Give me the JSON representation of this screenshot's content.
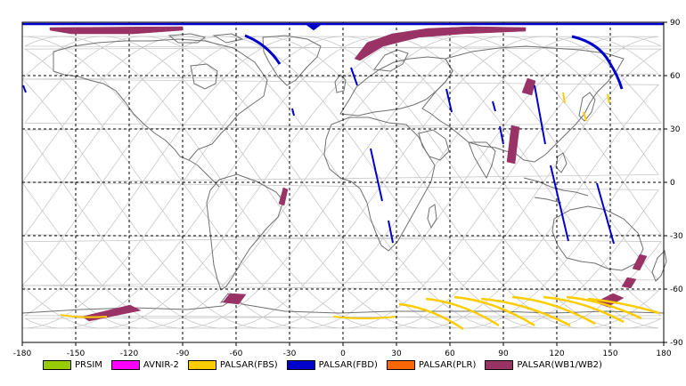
{
  "map": {
    "lon_ticks": [
      "-180",
      "-150",
      "-120",
      "-90",
      "-60",
      "-30",
      "0",
      "30",
      "60",
      "90",
      "120",
      "150",
      "180"
    ],
    "lat_ticks": [
      "90",
      "60",
      "30",
      "0",
      "-30",
      "-60",
      "-90"
    ],
    "colors": {
      "grid": "#000000",
      "orbit": "#c8c8c8",
      "coast": "#707070",
      "frame": "#000000"
    }
  },
  "legend": [
    {
      "label": "PRSIM",
      "color": "#99cc00"
    },
    {
      "label": "AVNIR-2",
      "color": "#ff00ff"
    },
    {
      "label": "PALSAR(FBS)",
      "color": "#ffcc00"
    },
    {
      "label": "PALSAR(FBD)",
      "color": "#0000cc"
    },
    {
      "label": "PALSAR(PLR)",
      "color": "#ff6600"
    },
    {
      "label": "PALSAR(WB1/WB2)",
      "color": "#993366"
    }
  ]
}
